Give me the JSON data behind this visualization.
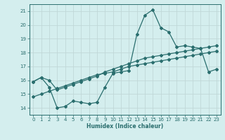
{
  "xlabel": "Humidex (Indice chaleur)",
  "bg_color": "#d4eeee",
  "grid_color": "#c0d8d8",
  "line_color": "#2a6e6e",
  "xlim": [
    -0.5,
    23.5
  ],
  "ylim": [
    13.5,
    21.5
  ],
  "xticks": [
    0,
    1,
    2,
    3,
    4,
    5,
    6,
    7,
    8,
    9,
    10,
    11,
    12,
    13,
    14,
    15,
    16,
    17,
    18,
    19,
    20,
    21,
    22,
    23
  ],
  "yticks": [
    14,
    15,
    16,
    17,
    18,
    19,
    20,
    21
  ],
  "curve1_x": [
    0,
    1,
    2,
    3,
    4,
    5,
    6,
    7,
    8,
    9,
    10,
    11,
    12,
    13,
    14,
    15,
    16,
    17,
    18,
    19,
    20,
    21,
    22,
    23
  ],
  "curve1_y": [
    15.9,
    16.2,
    15.5,
    14.0,
    14.1,
    14.5,
    14.4,
    14.3,
    14.4,
    15.5,
    16.5,
    16.6,
    16.7,
    19.3,
    20.7,
    21.1,
    19.8,
    19.5,
    18.4,
    18.5,
    18.4,
    18.3,
    16.6,
    16.8
  ],
  "curve2_x": [
    0,
    1,
    2,
    3,
    4,
    5,
    6,
    7,
    8,
    9,
    10,
    11,
    12,
    13,
    14,
    15,
    16,
    17,
    18,
    19,
    20,
    21,
    22,
    23
  ],
  "curve2_y": [
    15.9,
    16.2,
    16.0,
    15.3,
    15.5,
    15.7,
    15.9,
    16.1,
    16.3,
    16.6,
    16.8,
    17.0,
    17.2,
    17.4,
    17.6,
    17.7,
    17.8,
    17.9,
    18.0,
    18.1,
    18.2,
    18.3,
    18.4,
    18.5
  ],
  "curve3_x": [
    0,
    1,
    2,
    3,
    4,
    5,
    6,
    7,
    8,
    9,
    10,
    11,
    12,
    13,
    14,
    15,
    16,
    17,
    18,
    19,
    20,
    21,
    22,
    23
  ],
  "curve3_y": [
    14.8,
    15.0,
    15.2,
    15.4,
    15.6,
    15.8,
    16.0,
    16.2,
    16.4,
    16.5,
    16.6,
    16.8,
    17.0,
    17.1,
    17.2,
    17.3,
    17.4,
    17.5,
    17.6,
    17.7,
    17.8,
    17.9,
    18.0,
    18.1
  ]
}
